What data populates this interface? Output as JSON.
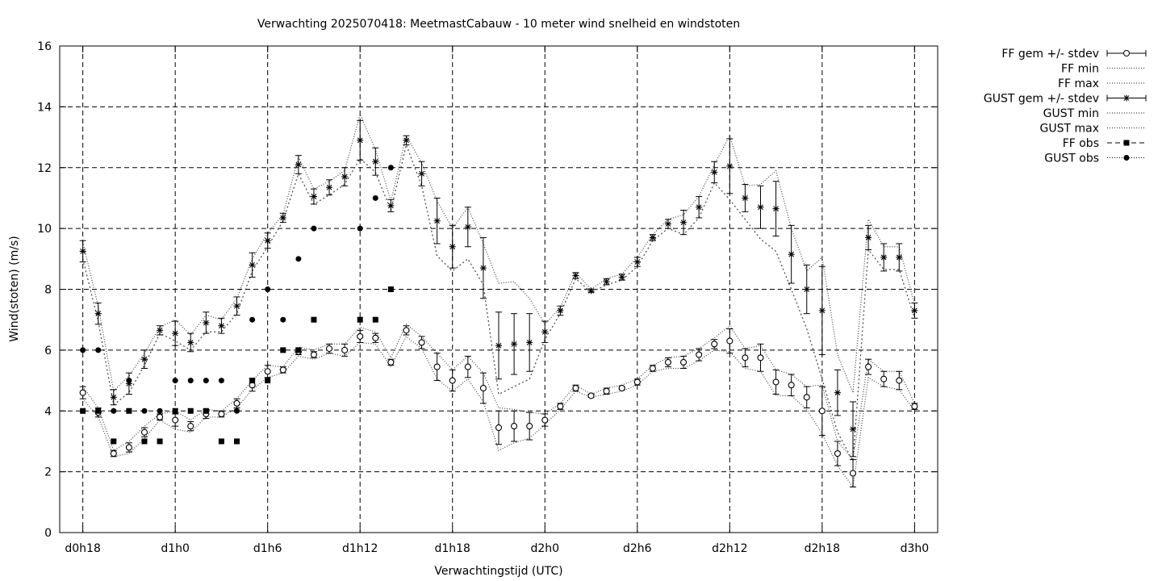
{
  "chart_data": {
    "type": "scatter",
    "title": "Verwachting 2025070418: MeetmastCabauw - 10 meter wind snelheid en windstoten",
    "xlabel": "Verwachtingstijd (UTC)",
    "ylabel": "Wind(stoten) (m/s)",
    "xlim": [
      -1.5,
      55.5
    ],
    "ylim": [
      0,
      16
    ],
    "yticks": [
      0,
      2,
      4,
      6,
      8,
      10,
      12,
      14,
      16
    ],
    "xticks": [
      {
        "x": 0,
        "label": "d0h18"
      },
      {
        "x": 6,
        "label": "d1h0"
      },
      {
        "x": 12,
        "label": "d1h6"
      },
      {
        "x": 18,
        "label": "d1h12"
      },
      {
        "x": 24,
        "label": "d1h18"
      },
      {
        "x": 30,
        "label": "d2h0"
      },
      {
        "x": 36,
        "label": "d2h6"
      },
      {
        "x": 42,
        "label": "d2h12"
      },
      {
        "x": 48,
        "label": "d2h18"
      },
      {
        "x": 54,
        "label": "d3h0"
      }
    ],
    "grid": true,
    "legend_position": "outside-top-right",
    "legend": [
      {
        "label": "FF gem +/- stdev",
        "style": "errorbar-circle"
      },
      {
        "label": "FF min",
        "style": "dotted"
      },
      {
        "label": "FF max",
        "style": "dotted"
      },
      {
        "label": "GUST gem +/- stdev",
        "style": "errorbar-star"
      },
      {
        "label": "GUST min",
        "style": "dotted"
      },
      {
        "label": "GUST max",
        "style": "dotted"
      },
      {
        "label": "FF obs",
        "style": "square-dashed"
      },
      {
        "label": "GUST obs",
        "style": "circle-dotted"
      }
    ],
    "x": [
      0,
      1,
      2,
      3,
      4,
      5,
      6,
      7,
      8,
      9,
      10,
      11,
      12,
      13,
      14,
      15,
      16,
      17,
      18,
      19,
      20,
      21,
      22,
      23,
      24,
      25,
      26,
      27,
      28,
      29,
      30,
      31,
      32,
      33,
      34,
      35,
      36,
      37,
      38,
      39,
      40,
      41,
      42,
      43,
      44,
      45,
      46,
      47,
      48,
      49,
      50,
      51,
      52,
      53,
      54
    ],
    "ff_mean": [
      4.6,
      3.95,
      2.6,
      2.8,
      3.3,
      3.8,
      3.7,
      3.5,
      3.9,
      3.9,
      4.25,
      4.85,
      5.3,
      5.35,
      5.95,
      5.85,
      6.05,
      6.0,
      6.45,
      6.4,
      5.6,
      6.65,
      6.25,
      5.45,
      5.0,
      5.45,
      4.75,
      3.45,
      3.5,
      3.5,
      3.7,
      4.15,
      4.75,
      4.5,
      4.65,
      4.75,
      4.95,
      5.4,
      5.6,
      5.6,
      5.85,
      6.2,
      6.3,
      5.75,
      5.75,
      4.95,
      4.85,
      4.45,
      4.0,
      2.6,
      1.95,
      5.45,
      5.05,
      5.0,
      4.15
    ],
    "ff_sd": [
      0.2,
      0.15,
      0.1,
      0.15,
      0.15,
      0.1,
      0.2,
      0.15,
      0.15,
      0.1,
      0.15,
      0.2,
      0.2,
      0.1,
      0.1,
      0.1,
      0.15,
      0.2,
      0.2,
      0.15,
      0.1,
      0.15,
      0.2,
      0.45,
      0.35,
      0.35,
      0.5,
      0.55,
      0.5,
      0.45,
      0.2,
      0.1,
      0.1,
      0.05,
      0.1,
      0.05,
      0.1,
      0.1,
      0.15,
      0.2,
      0.2,
      0.15,
      0.4,
      0.3,
      0.45,
      0.4,
      0.35,
      0.35,
      0.8,
      0.4,
      0.45,
      0.25,
      0.25,
      0.3,
      0.1
    ],
    "ff_min": [
      4.4,
      3.8,
      2.5,
      2.6,
      3.1,
      3.7,
      3.4,
      3.3,
      3.8,
      3.8,
      4.1,
      4.7,
      5.1,
      5.25,
      5.8,
      5.7,
      5.9,
      5.8,
      6.25,
      6.2,
      5.45,
      6.45,
      6.05,
      5.05,
      4.65,
      5.05,
      4.3,
      2.7,
      2.95,
      3.1,
      3.55,
      4.05,
      4.65,
      4.45,
      4.55,
      4.65,
      4.85,
      5.3,
      5.4,
      5.4,
      5.65,
      6.0,
      5.95,
      5.4,
      5.3,
      4.5,
      4.5,
      4.05,
      3.25,
      2.2,
      1.5,
      5.1,
      4.8,
      4.7,
      4.0
    ],
    "ff_max": [
      4.8,
      4.1,
      2.7,
      3.0,
      3.5,
      3.9,
      4.0,
      3.7,
      4.05,
      4.0,
      4.4,
      5.0,
      5.5,
      5.45,
      6.1,
      6.0,
      6.2,
      6.2,
      6.75,
      6.6,
      5.75,
      6.85,
      6.45,
      5.9,
      5.35,
      5.8,
      5.25,
      4.1,
      4.05,
      3.95,
      3.9,
      4.25,
      4.85,
      4.55,
      4.75,
      4.85,
      5.05,
      5.5,
      5.75,
      5.8,
      6.05,
      6.4,
      6.8,
      6.05,
      6.15,
      5.35,
      5.2,
      4.8,
      4.85,
      3.0,
      2.4,
      5.7,
      5.3,
      5.3,
      4.25
    ],
    "gust_mean": [
      9.25,
      7.2,
      4.45,
      4.9,
      5.7,
      6.65,
      6.55,
      6.25,
      6.9,
      6.8,
      7.45,
      8.8,
      9.6,
      10.35,
      12.1,
      11.05,
      11.35,
      11.7,
      12.9,
      12.2,
      10.75,
      12.9,
      11.8,
      10.25,
      9.4,
      10.05,
      8.7,
      6.15,
      6.2,
      6.25,
      6.6,
      7.3,
      8.45,
      7.95,
      8.25,
      8.4,
      8.9,
      9.7,
      10.15,
      10.2,
      10.7,
      11.85,
      12.05,
      11.0,
      10.7,
      10.65,
      9.15,
      8.0,
      7.3,
      4.6,
      3.4,
      9.7,
      9.05,
      9.05,
      7.3
    ],
    "gust_sd": [
      0.35,
      0.35,
      0.25,
      0.35,
      0.3,
      0.15,
      0.4,
      0.3,
      0.35,
      0.25,
      0.3,
      0.4,
      0.25,
      0.15,
      0.3,
      0.25,
      0.25,
      0.3,
      0.65,
      0.45,
      0.2,
      0.15,
      0.4,
      0.75,
      0.7,
      0.65,
      1.0,
      1.1,
      1.0,
      0.95,
      0.35,
      0.15,
      0.1,
      0.05,
      0.1,
      0.1,
      0.15,
      0.1,
      0.15,
      0.4,
      0.35,
      0.35,
      0.9,
      0.45,
      0.7,
      0.9,
      0.95,
      0.8,
      1.45,
      0.75,
      0.9,
      0.4,
      0.45,
      0.45,
      0.25
    ],
    "gust_min": [
      9.0,
      6.95,
      4.2,
      4.6,
      5.5,
      6.55,
      6.3,
      6.0,
      6.6,
      6.6,
      7.2,
      8.6,
      9.4,
      10.25,
      11.8,
      10.8,
      11.1,
      11.45,
      12.3,
      11.85,
      10.6,
      12.75,
      11.4,
      9.1,
      8.6,
      9.0,
      8.15,
      4.55,
      4.8,
      5.05,
      6.35,
      7.2,
      8.35,
      7.9,
      8.15,
      8.3,
      8.75,
      9.6,
      10.0,
      9.8,
      10.35,
      11.5,
      10.95,
      10.3,
      9.65,
      9.25,
      8.0,
      6.7,
      5.05,
      3.3,
      2.35,
      9.3,
      8.65,
      8.65,
      7.05
    ],
    "gust_max": [
      9.55,
      7.45,
      4.65,
      5.15,
      5.9,
      6.75,
      7.0,
      6.5,
      7.15,
      7.0,
      7.7,
      9.0,
      9.85,
      10.45,
      12.35,
      11.3,
      11.55,
      11.9,
      13.75,
      12.6,
      10.9,
      13.05,
      12.15,
      10.9,
      10.0,
      10.7,
      9.5,
      8.2,
      8.25,
      7.7,
      6.85,
      7.4,
      8.55,
      8.0,
      8.35,
      8.5,
      9.05,
      9.8,
      10.3,
      10.45,
      11.05,
      12.1,
      13.05,
      11.4,
      11.45,
      11.9,
      10.0,
      8.6,
      9.05,
      5.85,
      4.6,
      10.3,
      9.4,
      9.4,
      7.5
    ],
    "ff_obs_x": [
      0,
      1,
      2,
      3,
      4,
      5,
      6,
      7,
      8,
      9,
      10,
      11,
      12,
      13,
      14,
      15,
      18,
      19,
      20
    ],
    "ff_obs": [
      4,
      4,
      3,
      4,
      3,
      3,
      4,
      4,
      4,
      3,
      3,
      5,
      5,
      6,
      6,
      7,
      7,
      7,
      8
    ],
    "gust_obs_x": [
      0,
      1,
      2,
      3,
      4,
      5,
      6,
      7,
      8,
      9,
      10,
      11,
      12,
      13,
      14,
      15,
      18,
      19,
      20
    ],
    "gust_obs": [
      6,
      6,
      4,
      5,
      4,
      4,
      5,
      5,
      5,
      5,
      4,
      7,
      8,
      7,
      9,
      10,
      10,
      11,
      12
    ]
  }
}
